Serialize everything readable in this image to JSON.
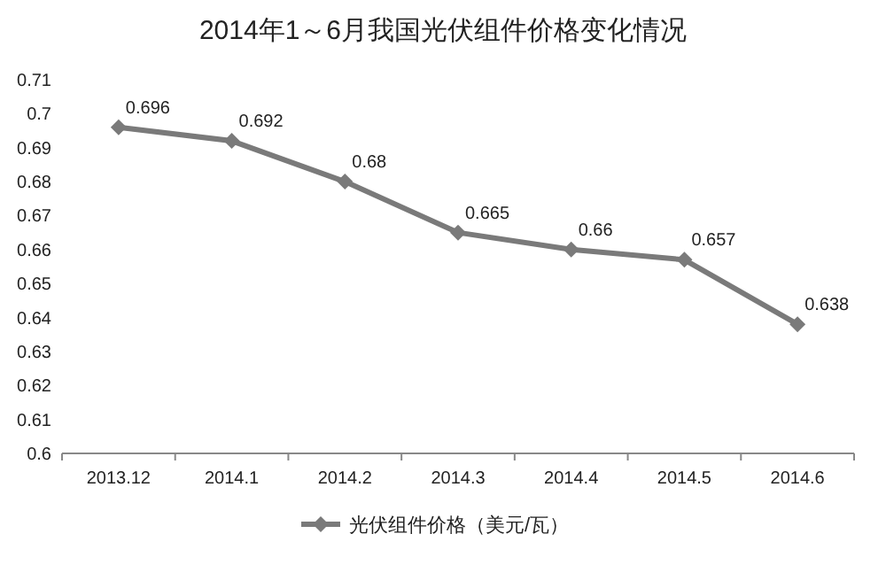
{
  "chart_data": {
    "type": "line",
    "title": "2014年1～6月我国光伏组件价格变化情况",
    "categories": [
      "2013.12",
      "2014.1",
      "2014.2",
      "2014.3",
      "2014.4",
      "2014.5",
      "2014.6"
    ],
    "series": [
      {
        "name": "光伏组件价格（美元/瓦）",
        "color": "#7a7a7a",
        "values": [
          0.696,
          0.692,
          0.68,
          0.665,
          0.66,
          0.657,
          0.638
        ]
      }
    ],
    "ylim": [
      0.6,
      0.71
    ],
    "yticks": [
      0.6,
      0.61,
      0.62,
      0.63,
      0.64,
      0.65,
      0.66,
      0.67,
      0.68,
      0.69,
      0.7,
      0.71
    ],
    "marker": "diamond",
    "line_style": "solid",
    "data_labels": true,
    "legend": "bottom",
    "grid": false
  }
}
